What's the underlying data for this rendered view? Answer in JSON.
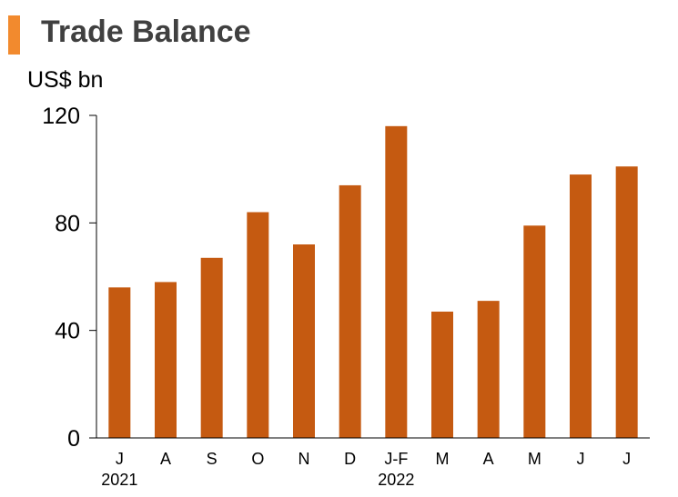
{
  "header": {
    "title": "Trade Balance",
    "accent_color": "#f28a2e"
  },
  "chart_data": {
    "type": "bar",
    "title": "Trade Balance",
    "ylabel": "US$ bn",
    "xlabel": "",
    "categories": [
      "J",
      "A",
      "S",
      "O",
      "N",
      "D",
      "J-F",
      "M",
      "A",
      "M",
      "J",
      "J"
    ],
    "year_labels": [
      {
        "label": "2021",
        "category_index": 0
      },
      {
        "label": "2022",
        "category_index": 6
      }
    ],
    "values": [
      56,
      58,
      67,
      84,
      72,
      94,
      116,
      47,
      51,
      79,
      98,
      101
    ],
    "ylim": [
      0,
      120
    ],
    "yticks": [
      0,
      40,
      80,
      120
    ],
    "bar_color": "#c55a11",
    "grid": false,
    "legend": "none"
  }
}
